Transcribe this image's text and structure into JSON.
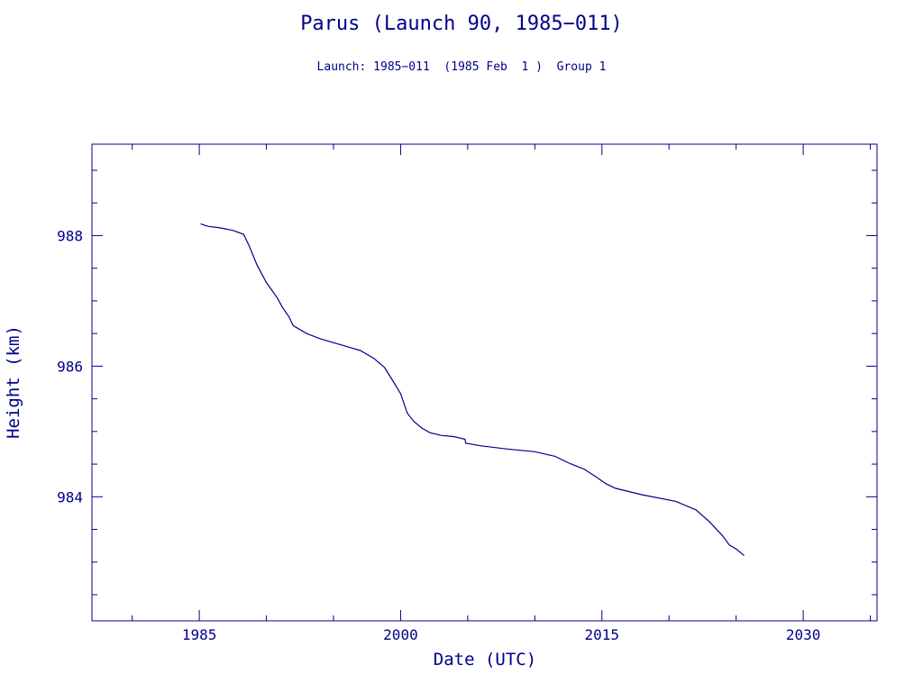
{
  "chart_data": {
    "type": "line",
    "title": "Parus (Launch 90, 1985−011)",
    "subtitle": "Launch: 1985−011  (1985 Feb  1 )  Group 1",
    "xlabel": "Date (UTC)",
    "ylabel": "Height (km)",
    "xlim": [
      1977,
      2035.5
    ],
    "ylim": [
      982.1,
      989.4
    ],
    "x_ticks": [
      1985,
      2000,
      2015,
      2030
    ],
    "x_tick_labels": [
      "1985",
      "2000",
      "2015",
      "2030"
    ],
    "y_ticks": [
      984,
      986,
      988
    ],
    "y_tick_labels": [
      "984",
      "986",
      "988"
    ],
    "grid": false,
    "series": [
      {
        "color": "#00008b",
        "x": [
          1985.1,
          1985.5,
          1985.7,
          1986.5,
          1987.5,
          1988.3,
          1988.7,
          1989.3,
          1990.0,
          1990.8,
          1991.2,
          1991.7,
          1992.0,
          1993.0,
          1994.0,
          1995.0,
          1996.0,
          1997.0,
          1998.0,
          1998.8,
          1999.5,
          2000.0,
          2000.5,
          2001.0,
          2001.6,
          2002.2,
          2003.0,
          2004.0,
          2004.8,
          2004.85,
          2006.0,
          2008.0,
          2010.0,
          2011.5,
          2012.5,
          2013.7,
          2014.6,
          2015.3,
          2016.0,
          2018.0,
          2020.5,
          2022.0,
          2023.0,
          2024.0,
          2024.5,
          2025.0,
          2025.6
        ],
        "values": [
          988.18,
          988.15,
          988.14,
          988.12,
          988.08,
          988.02,
          987.85,
          987.55,
          987.28,
          987.05,
          986.9,
          986.75,
          986.62,
          986.5,
          986.42,
          986.36,
          986.3,
          986.24,
          986.12,
          985.98,
          985.75,
          985.58,
          985.28,
          985.15,
          985.05,
          984.98,
          984.94,
          984.92,
          984.88,
          984.82,
          984.78,
          984.73,
          984.69,
          984.62,
          984.52,
          984.42,
          984.3,
          984.2,
          984.13,
          984.03,
          983.93,
          983.8,
          983.62,
          983.4,
          983.26,
          983.2,
          983.1
        ]
      }
    ]
  }
}
